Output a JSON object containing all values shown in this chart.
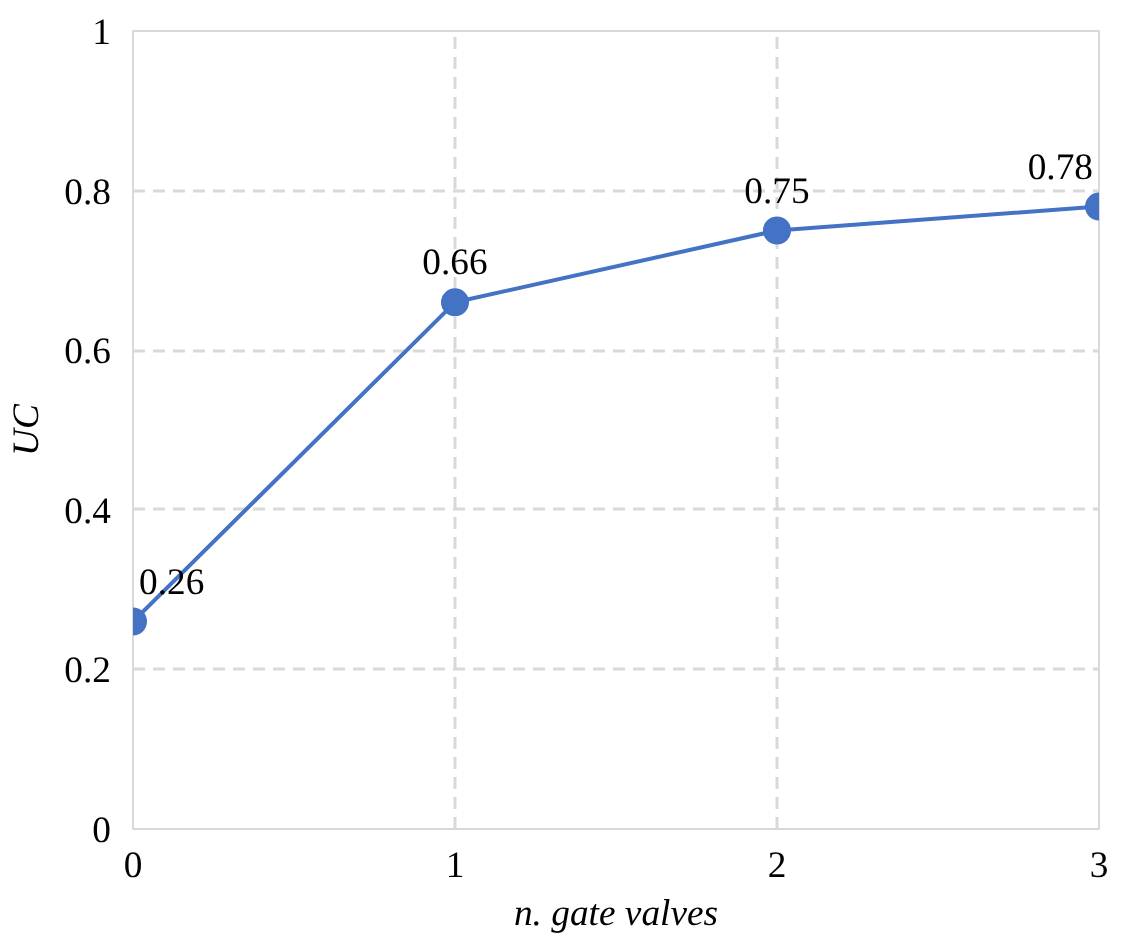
{
  "chart_data": {
    "type": "line",
    "xlabel": "n. gate valves",
    "ylabel": "UC",
    "x": [
      0,
      1,
      2,
      3
    ],
    "series": [
      {
        "color": "#4472c4",
        "values": [
          0.26,
          0.66,
          0.75,
          0.78
        ]
      }
    ],
    "xlim": [
      0,
      3
    ],
    "ylim": [
      0,
      1
    ],
    "xticks": [
      0,
      1,
      2,
      3
    ],
    "yticks": [
      0,
      0.2,
      0.4,
      0.6,
      0.8,
      1
    ],
    "grid": true,
    "marker": "circle",
    "line_style": "solid",
    "data_labels": true
  }
}
